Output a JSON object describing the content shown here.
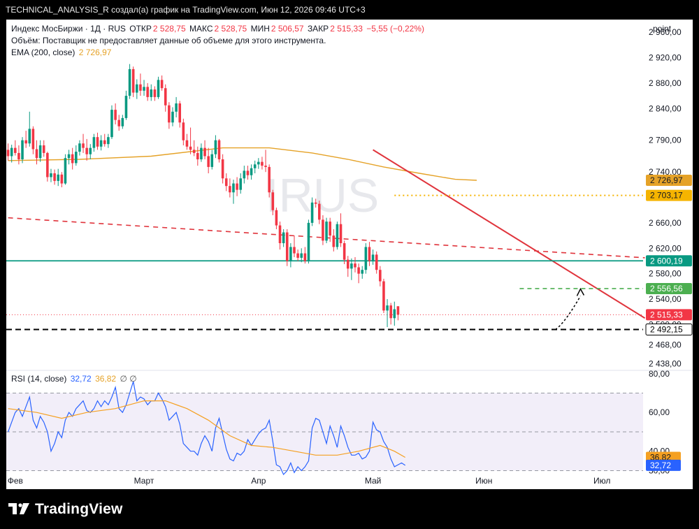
{
  "window": {
    "caption": "TECHNICAL_ANALYSIS_R создал(а) график на TradingView.com, Июн 12, 2026 09:46 UTC+3"
  },
  "legend": {
    "symbol": "Индекс МосБиржи · 1Д · RUS",
    "open_label": "ОТКР",
    "open_value": "2 528,75",
    "high_label": "МАКС",
    "high_value": "2 528,75",
    "low_label": "МИН",
    "low_value": "2 506,57",
    "close_label": "ЗАКР",
    "close_value": "2 515,33",
    "change": "−5,55 (−0,22%)",
    "volume_note": "Объём: Поставщик не предоставляет данные об объеме для этого инструмента.",
    "ema_label": "EMA (200, close)",
    "ema_value": "2 726,97",
    "rsi_label": "RSI (14, close)",
    "rsi_value": "32,72",
    "rsi_ma_value": "36,82",
    "rsi_extra": "∅ ∅"
  },
  "brand": {
    "name": "TradingView",
    "watermark": "IRUS"
  },
  "colors": {
    "up": "#089981",
    "down": "#f23645",
    "ema": "#e5a227",
    "rsi": "#2962ff",
    "rsi_ma": "#f5a021",
    "trend": "#e0343c",
    "support": "#089981",
    "dotted": "#f5b400",
    "dash_green": "#4caf50"
  },
  "chart_data": {
    "type": "candlestick",
    "price_axis": {
      "unit_label": "point",
      "range": [
        2430,
        2980
      ],
      "ticks": [
        "2 960,00",
        "2 920,00",
        "2 880,00",
        "2 840,00",
        "2 790,00",
        "2 740,00",
        "2 660,00",
        "2 620,00",
        "2 580,00",
        "2 540,00",
        "2 500,00",
        "2 468,00",
        "2 438,00"
      ],
      "tick_values": [
        2960,
        2920,
        2880,
        2840,
        2790,
        2740,
        2660,
        2620,
        2580,
        2540,
        2500,
        2468,
        2438
      ]
    },
    "rsi_axis": {
      "range": [
        28,
        81
      ],
      "ticks": [
        "80,00",
        "60,00",
        "40,00",
        "30,00"
      ],
      "tick_values": [
        80,
        60,
        40,
        30
      ],
      "band": [
        30,
        70
      ],
      "mid": 50
    },
    "time_axis": {
      "labels": [
        "Фев",
        "Март",
        "Апр",
        "Май",
        "Июн",
        "Июл"
      ],
      "label_index": [
        2,
        38,
        70,
        102,
        133,
        166
      ],
      "total_slots": 178
    },
    "candles": [
      {
        "o": 2775,
        "h": 2785,
        "l": 2758,
        "c": 2765
      },
      {
        "o": 2765,
        "h": 2783,
        "l": 2755,
        "c": 2778
      },
      {
        "o": 2778,
        "h": 2790,
        "l": 2766,
        "c": 2770
      },
      {
        "o": 2770,
        "h": 2782,
        "l": 2752,
        "c": 2760
      },
      {
        "o": 2760,
        "h": 2795,
        "l": 2754,
        "c": 2790
      },
      {
        "o": 2790,
        "h": 2805,
        "l": 2778,
        "c": 2785
      },
      {
        "o": 2785,
        "h": 2835,
        "l": 2780,
        "c": 2808
      },
      {
        "o": 2808,
        "h": 2812,
        "l": 2768,
        "c": 2776
      },
      {
        "o": 2776,
        "h": 2790,
        "l": 2752,
        "c": 2762
      },
      {
        "o": 2762,
        "h": 2790,
        "l": 2756,
        "c": 2782
      },
      {
        "o": 2782,
        "h": 2790,
        "l": 2764,
        "c": 2770
      },
      {
        "o": 2770,
        "h": 2772,
        "l": 2725,
        "c": 2732
      },
      {
        "o": 2732,
        "h": 2745,
        "l": 2724,
        "c": 2738
      },
      {
        "o": 2738,
        "h": 2744,
        "l": 2720,
        "c": 2726
      },
      {
        "o": 2726,
        "h": 2745,
        "l": 2718,
        "c": 2736
      },
      {
        "o": 2736,
        "h": 2740,
        "l": 2716,
        "c": 2722
      },
      {
        "o": 2722,
        "h": 2768,
        "l": 2720,
        "c": 2762
      },
      {
        "o": 2762,
        "h": 2775,
        "l": 2752,
        "c": 2768
      },
      {
        "o": 2768,
        "h": 2778,
        "l": 2744,
        "c": 2754
      },
      {
        "o": 2754,
        "h": 2782,
        "l": 2750,
        "c": 2772
      },
      {
        "o": 2772,
        "h": 2790,
        "l": 2766,
        "c": 2785
      },
      {
        "o": 2785,
        "h": 2800,
        "l": 2770,
        "c": 2778
      },
      {
        "o": 2778,
        "h": 2792,
        "l": 2758,
        "c": 2768
      },
      {
        "o": 2768,
        "h": 2784,
        "l": 2760,
        "c": 2778
      },
      {
        "o": 2778,
        "h": 2800,
        "l": 2772,
        "c": 2795
      },
      {
        "o": 2795,
        "h": 2802,
        "l": 2775,
        "c": 2780
      },
      {
        "o": 2780,
        "h": 2798,
        "l": 2774,
        "c": 2790
      },
      {
        "o": 2790,
        "h": 2800,
        "l": 2780,
        "c": 2784
      },
      {
        "o": 2784,
        "h": 2800,
        "l": 2778,
        "c": 2795
      },
      {
        "o": 2795,
        "h": 2845,
        "l": 2792,
        "c": 2838
      },
      {
        "o": 2838,
        "h": 2848,
        "l": 2815,
        "c": 2822
      },
      {
        "o": 2822,
        "h": 2830,
        "l": 2805,
        "c": 2812
      },
      {
        "o": 2812,
        "h": 2830,
        "l": 2808,
        "c": 2825
      },
      {
        "o": 2825,
        "h": 2868,
        "l": 2822,
        "c": 2860
      },
      {
        "o": 2860,
        "h": 2910,
        "l": 2855,
        "c": 2902
      },
      {
        "o": 2902,
        "h": 2906,
        "l": 2858,
        "c": 2865
      },
      {
        "o": 2865,
        "h": 2886,
        "l": 2855,
        "c": 2878
      },
      {
        "o": 2878,
        "h": 2895,
        "l": 2860,
        "c": 2868
      },
      {
        "o": 2868,
        "h": 2885,
        "l": 2860,
        "c": 2874
      },
      {
        "o": 2874,
        "h": 2880,
        "l": 2852,
        "c": 2858
      },
      {
        "o": 2858,
        "h": 2878,
        "l": 2852,
        "c": 2870
      },
      {
        "o": 2870,
        "h": 2875,
        "l": 2852,
        "c": 2858
      },
      {
        "o": 2858,
        "h": 2890,
        "l": 2855,
        "c": 2885
      },
      {
        "o": 2885,
        "h": 2892,
        "l": 2868,
        "c": 2872
      },
      {
        "o": 2872,
        "h": 2878,
        "l": 2835,
        "c": 2845
      },
      {
        "o": 2845,
        "h": 2850,
        "l": 2808,
        "c": 2818
      },
      {
        "o": 2818,
        "h": 2842,
        "l": 2812,
        "c": 2835
      },
      {
        "o": 2835,
        "h": 2858,
        "l": 2826,
        "c": 2848
      },
      {
        "o": 2848,
        "h": 2852,
        "l": 2810,
        "c": 2818
      },
      {
        "o": 2818,
        "h": 2824,
        "l": 2782,
        "c": 2790
      },
      {
        "o": 2790,
        "h": 2800,
        "l": 2775,
        "c": 2780
      },
      {
        "o": 2780,
        "h": 2810,
        "l": 2768,
        "c": 2775
      },
      {
        "o": 2775,
        "h": 2790,
        "l": 2765,
        "c": 2770
      },
      {
        "o": 2770,
        "h": 2780,
        "l": 2750,
        "c": 2760
      },
      {
        "o": 2760,
        "h": 2785,
        "l": 2756,
        "c": 2778
      },
      {
        "o": 2778,
        "h": 2790,
        "l": 2760,
        "c": 2765
      },
      {
        "o": 2765,
        "h": 2778,
        "l": 2738,
        "c": 2748
      },
      {
        "o": 2748,
        "h": 2775,
        "l": 2744,
        "c": 2768
      },
      {
        "o": 2768,
        "h": 2798,
        "l": 2762,
        "c": 2790
      },
      {
        "o": 2790,
        "h": 2792,
        "l": 2755,
        "c": 2760
      },
      {
        "o": 2760,
        "h": 2768,
        "l": 2722,
        "c": 2730
      },
      {
        "o": 2730,
        "h": 2738,
        "l": 2710,
        "c": 2718
      },
      {
        "o": 2718,
        "h": 2730,
        "l": 2700,
        "c": 2708
      },
      {
        "o": 2708,
        "h": 2728,
        "l": 2690,
        "c": 2722
      },
      {
        "o": 2722,
        "h": 2732,
        "l": 2702,
        "c": 2712
      },
      {
        "o": 2712,
        "h": 2738,
        "l": 2706,
        "c": 2730
      },
      {
        "o": 2730,
        "h": 2750,
        "l": 2722,
        "c": 2742
      },
      {
        "o": 2742,
        "h": 2750,
        "l": 2728,
        "c": 2735
      },
      {
        "o": 2735,
        "h": 2752,
        "l": 2728,
        "c": 2746
      },
      {
        "o": 2746,
        "h": 2758,
        "l": 2738,
        "c": 2752
      },
      {
        "o": 2752,
        "h": 2762,
        "l": 2745,
        "c": 2756
      },
      {
        "o": 2756,
        "h": 2764,
        "l": 2744,
        "c": 2750
      },
      {
        "o": 2750,
        "h": 2775,
        "l": 2740,
        "c": 2748
      },
      {
        "o": 2748,
        "h": 2752,
        "l": 2700,
        "c": 2708
      },
      {
        "o": 2708,
        "h": 2712,
        "l": 2672,
        "c": 2680
      },
      {
        "o": 2680,
        "h": 2684,
        "l": 2650,
        "c": 2656
      },
      {
        "o": 2656,
        "h": 2662,
        "l": 2618,
        "c": 2628
      },
      {
        "o": 2628,
        "h": 2650,
        "l": 2622,
        "c": 2645
      },
      {
        "o": 2645,
        "h": 2650,
        "l": 2592,
        "c": 2600
      },
      {
        "o": 2600,
        "h": 2628,
        "l": 2590,
        "c": 2622
      },
      {
        "o": 2622,
        "h": 2640,
        "l": 2606,
        "c": 2612
      },
      {
        "o": 2612,
        "h": 2618,
        "l": 2600,
        "c": 2605
      },
      {
        "o": 2605,
        "h": 2620,
        "l": 2598,
        "c": 2612
      },
      {
        "o": 2612,
        "h": 2622,
        "l": 2596,
        "c": 2600
      },
      {
        "o": 2600,
        "h": 2665,
        "l": 2596,
        "c": 2660
      },
      {
        "o": 2660,
        "h": 2700,
        "l": 2655,
        "c": 2692
      },
      {
        "o": 2692,
        "h": 2698,
        "l": 2684,
        "c": 2690
      },
      {
        "o": 2690,
        "h": 2695,
        "l": 2658,
        "c": 2665
      },
      {
        "o": 2665,
        "h": 2672,
        "l": 2625,
        "c": 2632
      },
      {
        "o": 2632,
        "h": 2668,
        "l": 2628,
        "c": 2662
      },
      {
        "o": 2662,
        "h": 2668,
        "l": 2630,
        "c": 2640
      },
      {
        "o": 2640,
        "h": 2650,
        "l": 2615,
        "c": 2622
      },
      {
        "o": 2622,
        "h": 2662,
        "l": 2618,
        "c": 2658
      },
      {
        "o": 2658,
        "h": 2675,
        "l": 2622,
        "c": 2628
      },
      {
        "o": 2628,
        "h": 2632,
        "l": 2595,
        "c": 2602
      },
      {
        "o": 2602,
        "h": 2608,
        "l": 2575,
        "c": 2588
      },
      {
        "o": 2588,
        "h": 2604,
        "l": 2570,
        "c": 2596
      },
      {
        "o": 2596,
        "h": 2606,
        "l": 2582,
        "c": 2590
      },
      {
        "o": 2590,
        "h": 2596,
        "l": 2565,
        "c": 2580
      },
      {
        "o": 2580,
        "h": 2592,
        "l": 2572,
        "c": 2586
      },
      {
        "o": 2586,
        "h": 2628,
        "l": 2580,
        "c": 2622
      },
      {
        "o": 2622,
        "h": 2630,
        "l": 2592,
        "c": 2600
      },
      {
        "o": 2600,
        "h": 2618,
        "l": 2594,
        "c": 2610
      },
      {
        "o": 2610,
        "h": 2615,
        "l": 2580,
        "c": 2586
      },
      {
        "o": 2586,
        "h": 2592,
        "l": 2560,
        "c": 2568
      },
      {
        "o": 2568,
        "h": 2572,
        "l": 2518,
        "c": 2522
      },
      {
        "o": 2522,
        "h": 2540,
        "l": 2496,
        "c": 2530
      },
      {
        "o": 2530,
        "h": 2534,
        "l": 2500,
        "c": 2510
      },
      {
        "o": 2510,
        "h": 2536,
        "l": 2498,
        "c": 2524
      },
      {
        "o": 2528.75,
        "h": 2528.75,
        "l": 2506.57,
        "c": 2515.33
      }
    ],
    "candle_start_slot": 0,
    "ema200": {
      "start": [
        0,
        2758
      ],
      "points": [
        [
          0,
          2758
        ],
        [
          20,
          2760
        ],
        [
          40,
          2765
        ],
        [
          60,
          2778
        ],
        [
          73,
          2778
        ],
        [
          85,
          2770
        ],
        [
          95,
          2760
        ],
        [
          105,
          2748
        ],
        [
          115,
          2738
        ],
        [
          125,
          2728.5
        ],
        [
          131,
          2726.97
        ]
      ],
      "offset": 0
    },
    "rsi": [
      50,
      55,
      60,
      62,
      58,
      63,
      68,
      56,
      52,
      58,
      55,
      50,
      40,
      44,
      50,
      47,
      56,
      60,
      58,
      62,
      64,
      66,
      61,
      60,
      62,
      66,
      63,
      66,
      64,
      68,
      73,
      62,
      60,
      64,
      70,
      76,
      66,
      68,
      67,
      64,
      66,
      66,
      70,
      67,
      63,
      56,
      58,
      60,
      54,
      44,
      42,
      40,
      40,
      38,
      44,
      48,
      45,
      40,
      52,
      57,
      49,
      41,
      36,
      35,
      39,
      38,
      40,
      46,
      43,
      46,
      49,
      51,
      52,
      56,
      45,
      33,
      32,
      28,
      30,
      34,
      29,
      32,
      30,
      32,
      35,
      52,
      57,
      56,
      50,
      44,
      53,
      48,
      42,
      53,
      48,
      42,
      38,
      38,
      39,
      36,
      37,
      40,
      55,
      51,
      50,
      45,
      42,
      36,
      32,
      33,
      34,
      32.72
    ],
    "rsi_ma": {
      "points": [
        [
          0,
          62
        ],
        [
          8,
          60
        ],
        [
          15,
          57
        ],
        [
          22,
          60
        ],
        [
          30,
          62
        ],
        [
          38,
          66
        ],
        [
          44,
          66
        ],
        [
          50,
          62
        ],
        [
          56,
          56
        ],
        [
          62,
          48
        ],
        [
          68,
          43
        ],
        [
          74,
          42
        ],
        [
          80,
          40
        ],
        [
          86,
          38
        ],
        [
          92,
          38
        ],
        [
          98,
          40
        ],
        [
          104,
          43
        ],
        [
          108,
          40
        ],
        [
          111,
          36.82
        ]
      ]
    },
    "levels": [
      {
        "name": "support",
        "value": 2600.19,
        "label": "2 600,19",
        "style": "solid"
      },
      {
        "name": "ema-level",
        "value": 2726.97,
        "label": "2 726,97",
        "style": "none"
      },
      {
        "name": "dotted-resistance",
        "value": 2703.17,
        "label": "2 703,17",
        "style": "dotted",
        "from_slot": 108
      },
      {
        "name": "target",
        "value": 2556.56,
        "label": "2 556,56",
        "style": "dashed",
        "from_slot": 143
      },
      {
        "name": "last-price",
        "value": 2515.33,
        "label": "2 515,33",
        "style": "dotted-thin"
      },
      {
        "name": "low-level",
        "value": 2492.15,
        "label": "2 492,15",
        "style": "dashed-black"
      }
    ],
    "trendlines": [
      {
        "name": "down-trendline",
        "from": [
          102,
          2775
        ],
        "to": [
          178,
          2510
        ],
        "style": "solid"
      },
      {
        "name": "dashed-trendline",
        "from": [
          0,
          2668
        ],
        "to": [
          178,
          2605
        ],
        "style": "dashed"
      }
    ],
    "projection": {
      "from": [
        153,
        2492
      ],
      "to": [
        160,
        2556
      ]
    }
  }
}
